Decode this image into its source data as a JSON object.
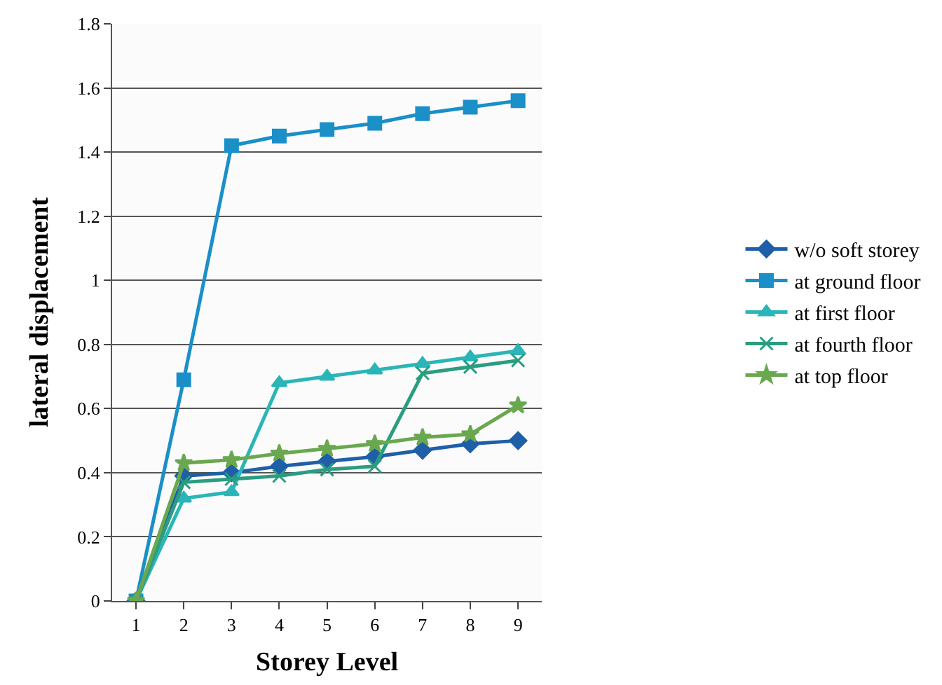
{
  "chart_data": {
    "type": "line",
    "xlabel": "Storey Level",
    "ylabel": "lateral displacement",
    "categories": [
      "1",
      "2",
      "3",
      "4",
      "5",
      "6",
      "7",
      "8",
      "9"
    ],
    "series": [
      {
        "name": "w/o soft storey",
        "color": "#1f5fa8",
        "marker": "diamond",
        "values": [
          0,
          0.39,
          0.4,
          0.42,
          0.435,
          0.45,
          0.47,
          0.49,
          0.5
        ]
      },
      {
        "name": "at ground floor",
        "color": "#1a8fc8",
        "marker": "square",
        "values": [
          0,
          0.69,
          1.42,
          1.45,
          1.47,
          1.49,
          1.52,
          1.54,
          1.56
        ]
      },
      {
        "name": "at first floor",
        "color": "#2ab5b8",
        "marker": "triangle",
        "values": [
          0,
          0.32,
          0.34,
          0.68,
          0.7,
          0.72,
          0.74,
          0.76,
          0.78
        ]
      },
      {
        "name": "at fourth floor",
        "color": "#2a9d80",
        "marker": "cross",
        "values": [
          0,
          0.37,
          0.38,
          0.39,
          0.41,
          0.42,
          0.71,
          0.73,
          0.75
        ]
      },
      {
        "name": "at top floor",
        "color": "#6aa84f",
        "marker": "star",
        "values": [
          0,
          0.43,
          0.44,
          0.46,
          0.475,
          0.49,
          0.51,
          0.52,
          0.61
        ]
      }
    ],
    "ylim": [
      0,
      1.8
    ],
    "yticks": [
      0,
      0.2,
      0.4,
      0.6,
      0.8,
      1,
      1.2,
      1.4,
      1.6,
      1.8
    ],
    "grid": "y",
    "legend": "right"
  }
}
